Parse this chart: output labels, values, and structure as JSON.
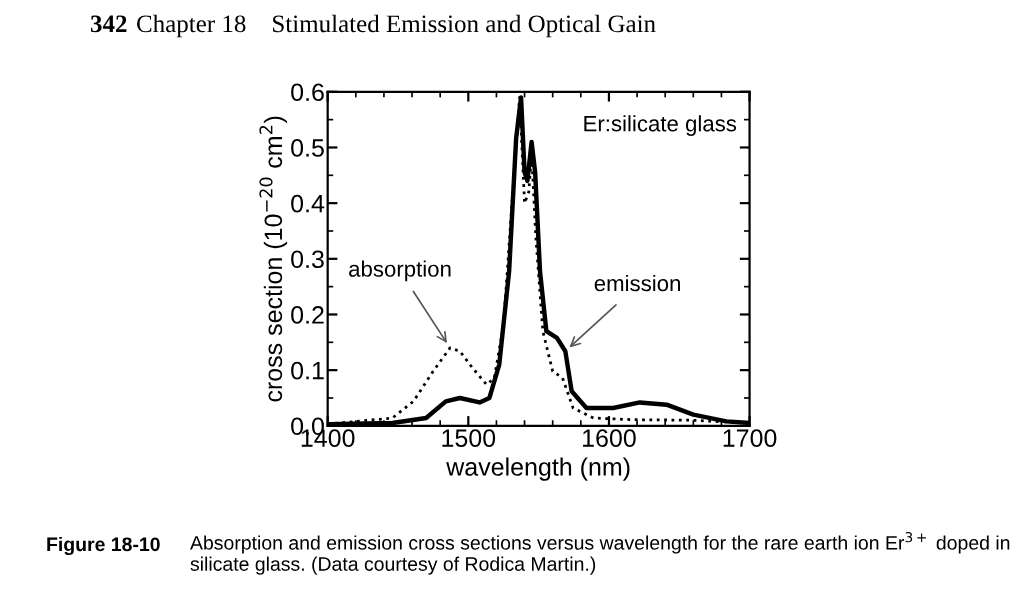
{
  "chart_data": {
    "type": "line",
    "xlabel": "wavelength (nm)",
    "ylabel": "cross section (10$^{−20}$ cm$^{2}$)",
    "xlim": [
      1400,
      1700
    ],
    "xticks": [
      1400,
      1500,
      1600,
      1700
    ],
    "ylim": [
      0,
      0.6
    ],
    "yticks": [
      {
        "value": 0,
        "label": "0.0"
      },
      0.1,
      0.2,
      0.3,
      0.4,
      0.5,
      0.6
    ],
    "grid": false,
    "legend": false,
    "series": [
      {
        "color": "#000000",
        "line_style": "solid",
        "x": [
          1400,
          1446,
          1470,
          1484,
          1494,
          1508,
          1515,
          1522,
          1529,
          1534,
          1537.5,
          1540,
          1542,
          1545,
          1547.5,
          1551,
          1555.5,
          1563,
          1569,
          1573.5,
          1584,
          1603,
          1622,
          1641,
          1660,
          1683.5,
          1700
        ],
        "values": [
          0.003,
          0.005,
          0.014,
          0.044,
          0.05,
          0.042,
          0.05,
          0.11,
          0.277,
          0.516,
          0.59,
          0.456,
          0.44,
          0.51,
          0.456,
          0.277,
          0.17,
          0.158,
          0.134,
          0.062,
          0.032,
          0.032,
          0.042,
          0.038,
          0.02,
          0.008,
          0.005
        ]
      },
      {
        "color": "#000000",
        "line_style": "dotted",
        "x": [
          1400,
          1446,
          1461,
          1475,
          1487,
          1494,
          1503,
          1513,
          1518.5,
          1525,
          1531,
          1536.5,
          1540,
          1543,
          1545,
          1548,
          1553,
          1560,
          1567,
          1574.5,
          1589,
          1617,
          1660,
          1700
        ],
        "values": [
          0.003,
          0.014,
          0.044,
          0.098,
          0.14,
          0.134,
          0.104,
          0.074,
          0.086,
          0.18,
          0.397,
          0.59,
          0.4,
          0.42,
          0.49,
          0.34,
          0.17,
          0.098,
          0.086,
          0.032,
          0.014,
          0.011,
          0.01,
          0.005
        ]
      }
    ],
    "annotations": [
      "Er:silicate glass",
      {
        "text": "absorption",
        "x": 1487,
        "y": 0.14
      },
      {
        "text": "emission",
        "x": 1569,
        "y": 0.134
      },
      "342",
      "Chapter 18    Stimulated Emission and Optical Gain",
      "Figure 18-10",
      "Absorption and emission cross sections versus wavelength for the rare earth ion Er$^{3+}$ doped in silicate glass. (Data courtesy of Rodica Martin.)"
    ]
  }
}
